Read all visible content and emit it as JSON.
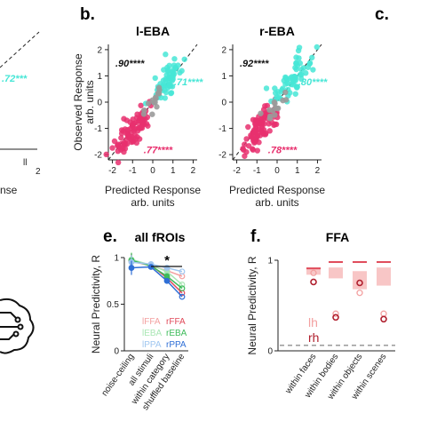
{
  "panels": {
    "b_label": "b.",
    "c_label": "c.",
    "e_label": "e.",
    "f_label": "f."
  },
  "colors": {
    "magenta": "#e8306e",
    "cyan": "#47e6d6",
    "gray": "#9a9a9a",
    "black": "#111111",
    "ffa": "#e04a5a",
    "ffa_light": "#f3a0a0",
    "eba": "#3dbb5a",
    "eba_light": "#a9e6b4",
    "ppa": "#2f6fd6",
    "ppa_light": "#9fc6f0"
  },
  "left_partial": {
    "corr_label": ".72***",
    "tick_right": "2",
    "tick_mid": "ll",
    "xlabel_fragment": "nse"
  },
  "chart_data": [
    {
      "type": "scatter",
      "title": "l-EBA",
      "xlabel": "Predicted Response",
      "xlabel2": "arb. units",
      "ylabel": "Observed Response",
      "ylabel2": "arb. units",
      "xlim": [
        -2.2,
        2.2
      ],
      "ylim": [
        -2.2,
        2.2
      ],
      "xticks": [
        "-2",
        "-1",
        "0",
        "1",
        "2"
      ],
      "yticks": [
        "2",
        "1",
        "0",
        "-1",
        "-2"
      ],
      "corr_total": ".90****",
      "corr_cyan": ".71****",
      "corr_magenta": ".77****"
    },
    {
      "type": "scatter",
      "title": "r-EBA",
      "xlabel": "Predicted Response",
      "xlabel2": "arb. units",
      "xlim": [
        -2.2,
        2.2
      ],
      "ylim": [
        -2.2,
        2.2
      ],
      "xticks": [
        "-2",
        "-1",
        "0",
        "1",
        "2"
      ],
      "yticks": [
        "2",
        "1",
        "0",
        "-1",
        "-2"
      ],
      "corr_total": ".92****",
      "corr_cyan": ".80****",
      "corr_magenta": ".78****"
    },
    {
      "type": "line",
      "title": "all fROIs",
      "ylabel": "Neural Predictivity, R",
      "categories": [
        "noise-ceiling",
        "all stimuli",
        "within category",
        "shuffled baseline"
      ],
      "ylim": [
        0,
        1
      ],
      "yticks": [
        "0",
        "0.5",
        "1"
      ],
      "significance": "*",
      "series": [
        {
          "name": "lFFA",
          "values": [
            0.96,
            0.91,
            0.86,
            0.8
          ],
          "style": "light",
          "group": "ffa"
        },
        {
          "name": "rFFA",
          "values": [
            0.97,
            0.92,
            0.78,
            0.62
          ],
          "style": "dark",
          "group": "ffa"
        },
        {
          "name": "lEBA",
          "values": [
            0.98,
            0.92,
            0.85,
            0.71
          ],
          "style": "light",
          "group": "eba"
        },
        {
          "name": "rEBA",
          "values": [
            0.97,
            0.91,
            0.8,
            0.67
          ],
          "style": "dark",
          "group": "eba"
        },
        {
          "name": "lPPA",
          "values": [
            0.95,
            0.93,
            0.89,
            0.85
          ],
          "style": "light",
          "group": "ppa"
        },
        {
          "name": "rPPA",
          "values": [
            0.89,
            0.9,
            0.75,
            0.58
          ],
          "style": "dark",
          "group": "ppa"
        }
      ],
      "legend": [
        "lFFA",
        "rFFA",
        "lEBA",
        "rEBA",
        "lPPA",
        "rPPA"
      ]
    },
    {
      "type": "scatter",
      "title": "FFA",
      "ylabel": "Neural Predictivity, R",
      "categories": [
        "within faces",
        "within bodies",
        "within objects",
        "within scenes"
      ],
      "ylim": [
        0,
        1
      ],
      "yticks": [
        "0",
        "1"
      ],
      "legend": [
        "lh",
        "rh"
      ],
      "bars": [
        {
          "lh": [
            0.84,
            0.92
          ],
          "rh": 0.91
        },
        {
          "lh": [
            0.8,
            0.92
          ],
          "rh": 0.98
        },
        {
          "lh": [
            0.68,
            0.88
          ],
          "rh": 0.98
        },
        {
          "lh": [
            0.72,
            0.92
          ],
          "rh": 0.98
        }
      ],
      "points": [
        {
          "cat": 0,
          "lh": 0.86,
          "rh": 0.76
        },
        {
          "cat": 1,
          "lh": 0.41,
          "rh": 0.37
        },
        {
          "cat": 2,
          "lh": 0.64,
          "rh": 0.75
        },
        {
          "cat": 3,
          "lh": 0.41,
          "rh": 0.35
        }
      ],
      "baseline": 0.06
    }
  ]
}
